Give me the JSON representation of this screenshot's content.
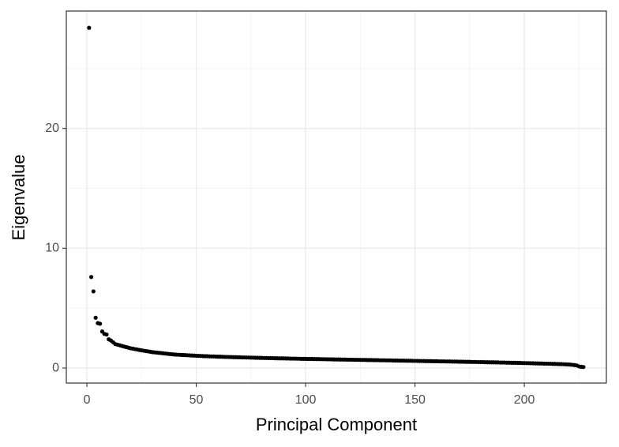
{
  "chart_data": {
    "type": "scatter",
    "x_label": "Principal Component",
    "y_label": "Eigenvalue",
    "color": "#000000",
    "grid": true,
    "xlim": [
      -9.4,
      237.5
    ],
    "ylim": [
      -1.25,
      29.8
    ],
    "xticks": [
      0,
      50,
      100,
      150,
      200
    ],
    "yticks": [
      0,
      10,
      20
    ],
    "x_minor_ticks": [
      25,
      75,
      125,
      175,
      225
    ],
    "y_minor_ticks": [
      5,
      15,
      25
    ],
    "x": [
      1,
      2,
      3,
      4,
      5,
      6,
      7,
      8,
      9,
      10,
      11,
      12,
      13,
      14,
      15,
      16,
      17,
      18,
      19,
      20,
      21,
      22,
      23,
      24,
      25,
      26,
      27,
      28,
      29,
      30,
      31,
      32,
      33,
      34,
      35,
      36,
      37,
      38,
      39,
      40,
      41,
      42,
      43,
      44,
      45,
      46,
      47,
      48,
      49,
      50,
      51,
      52,
      53,
      54,
      55,
      56,
      57,
      58,
      59,
      60,
      61,
      62,
      63,
      64,
      65,
      66,
      67,
      68,
      69,
      70,
      71,
      72,
      73,
      74,
      75,
      76,
      77,
      78,
      79,
      80,
      81,
      82,
      83,
      84,
      85,
      86,
      87,
      88,
      89,
      90,
      91,
      92,
      93,
      94,
      95,
      96,
      97,
      98,
      99,
      100,
      101,
      102,
      103,
      104,
      105,
      106,
      107,
      108,
      109,
      110,
      111,
      112,
      113,
      114,
      115,
      116,
      117,
      118,
      119,
      120,
      121,
      122,
      123,
      124,
      125,
      126,
      127,
      128,
      129,
      130,
      131,
      132,
      133,
      134,
      135,
      136,
      137,
      138,
      139,
      140,
      141,
      142,
      143,
      144,
      145,
      146,
      147,
      148,
      149,
      150,
      151,
      152,
      153,
      154,
      155,
      156,
      157,
      158,
      159,
      160,
      161,
      162,
      163,
      164,
      165,
      166,
      167,
      168,
      169,
      170,
      171,
      172,
      173,
      174,
      175,
      176,
      177,
      178,
      179,
      180,
      181,
      182,
      183,
      184,
      185,
      186,
      187,
      188,
      189,
      190,
      191,
      192,
      193,
      194,
      195,
      196,
      197,
      198,
      199,
      200,
      201,
      202,
      203,
      204,
      205,
      206,
      207,
      208,
      209,
      210,
      211,
      212,
      213,
      214,
      215,
      216,
      217,
      218,
      219,
      220,
      221,
      222,
      223,
      224,
      225,
      226,
      227
    ],
    "values": [
      28.4,
      7.6,
      6.4,
      4.2,
      3.75,
      3.7,
      3.05,
      2.85,
      2.8,
      2.4,
      2.3,
      2.15,
      2.0,
      1.95,
      1.9,
      1.85,
      1.8,
      1.75,
      1.7,
      1.65,
      1.62,
      1.58,
      1.55,
      1.51,
      1.48,
      1.45,
      1.42,
      1.39,
      1.36,
      1.33,
      1.31,
      1.29,
      1.27,
      1.25,
      1.23,
      1.21,
      1.19,
      1.17,
      1.15,
      1.13,
      1.12,
      1.11,
      1.1,
      1.09,
      1.08,
      1.07,
      1.06,
      1.05,
      1.04,
      1.03,
      1.02,
      1.01,
      1.0,
      0.99,
      0.99,
      0.98,
      0.97,
      0.97,
      0.96,
      0.95,
      0.95,
      0.94,
      0.93,
      0.93,
      0.92,
      0.92,
      0.91,
      0.91,
      0.9,
      0.9,
      0.89,
      0.89,
      0.88,
      0.88,
      0.87,
      0.87,
      0.86,
      0.86,
      0.85,
      0.85,
      0.84,
      0.84,
      0.83,
      0.83,
      0.83,
      0.82,
      0.82,
      0.81,
      0.81,
      0.81,
      0.8,
      0.8,
      0.79,
      0.79,
      0.79,
      0.78,
      0.78,
      0.77,
      0.77,
      0.77,
      0.76,
      0.76,
      0.76,
      0.75,
      0.75,
      0.75,
      0.74,
      0.74,
      0.74,
      0.73,
      0.73,
      0.73,
      0.72,
      0.72,
      0.72,
      0.71,
      0.71,
      0.71,
      0.7,
      0.7,
      0.7,
      0.69,
      0.69,
      0.69,
      0.68,
      0.68,
      0.68,
      0.67,
      0.67,
      0.67,
      0.66,
      0.66,
      0.66,
      0.65,
      0.65,
      0.65,
      0.64,
      0.64,
      0.64,
      0.63,
      0.63,
      0.63,
      0.62,
      0.62,
      0.62,
      0.61,
      0.61,
      0.61,
      0.6,
      0.6,
      0.6,
      0.59,
      0.59,
      0.59,
      0.58,
      0.58,
      0.58,
      0.57,
      0.57,
      0.57,
      0.56,
      0.56,
      0.56,
      0.55,
      0.55,
      0.55,
      0.54,
      0.54,
      0.54,
      0.53,
      0.53,
      0.53,
      0.52,
      0.52,
      0.52,
      0.51,
      0.51,
      0.51,
      0.5,
      0.5,
      0.5,
      0.49,
      0.49,
      0.48,
      0.48,
      0.48,
      0.47,
      0.47,
      0.46,
      0.46,
      0.46,
      0.45,
      0.45,
      0.44,
      0.44,
      0.44,
      0.43,
      0.43,
      0.42,
      0.42,
      0.41,
      0.41,
      0.4,
      0.4,
      0.39,
      0.39,
      0.38,
      0.38,
      0.37,
      0.37,
      0.36,
      0.36,
      0.35,
      0.35,
      0.34,
      0.33,
      0.33,
      0.32,
      0.31,
      0.3,
      0.29,
      0.27,
      0.25,
      0.22,
      0.14,
      0.11,
      0.09
    ]
  }
}
